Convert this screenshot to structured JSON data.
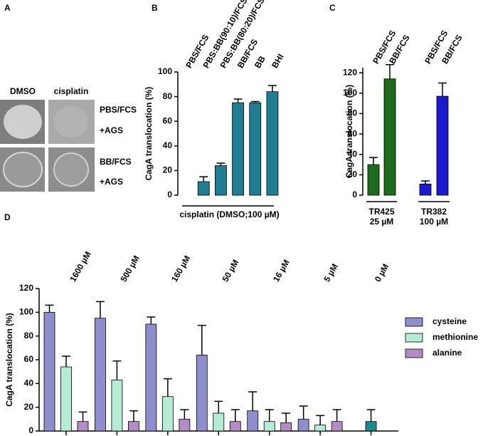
{
  "panel_labels": [
    "A",
    "B",
    "C",
    "D"
  ],
  "panel_a": {
    "columns": [
      "DMSO",
      "cisplatin"
    ],
    "rows": [
      [
        "PBS/FCS",
        "+AGS"
      ],
      [
        "BB/FCS",
        "+AGS"
      ]
    ]
  },
  "chart_data": [
    {
      "type": "bar",
      "ylabel": "CagA translocation (%)",
      "xlabel": "cisplatin (DMSO;100 µM)",
      "categories": [
        "PBS/FCS",
        "PBS:BB(90:10)/FCS",
        "PBS:BB(80:20)/FCS",
        "BB/FCS",
        "BB",
        "BHI"
      ],
      "values": [
        0,
        11,
        24,
        75,
        75,
        84
      ],
      "errors": [
        null,
        4,
        2,
        3,
        1,
        5
      ],
      "color": "#1f7d91",
      "ylim": [
        0,
        100
      ],
      "yticks": [
        0,
        20,
        40,
        60,
        80,
        100
      ]
    },
    {
      "type": "bar",
      "ylabel": "CagA translocation (%)",
      "categories": [
        "PBS/FCS",
        "BB/FCS",
        "PBS/FCS",
        "BB/FCS"
      ],
      "values": [
        30,
        114,
        11,
        97
      ],
      "errors": [
        7,
        14,
        3,
        13
      ],
      "colors": [
        "#1d6b1d",
        "#1d6b1d",
        "#1a1ad0",
        "#1a1ad0"
      ],
      "groups": [
        [
          "TR425",
          "25 µM"
        ],
        [
          "TR382",
          "100 µM"
        ]
      ],
      "ylim": [
        0,
        125
      ],
      "yticks": [
        0,
        20,
        40,
        60,
        80,
        100,
        120
      ]
    },
    {
      "type": "grouped_bar",
      "ylabel": "CagA translocation (%)",
      "categories": [
        "1600 µM",
        "500 µM",
        "160 µM",
        "50 µM",
        "16 µM",
        "5 µM",
        "0 µM"
      ],
      "series": [
        {
          "name": "cysteine",
          "color": "#8e8ecc",
          "values": [
            100,
            95,
            90,
            64,
            17,
            10,
            null
          ],
          "errors": [
            6,
            14,
            6,
            25,
            16,
            11,
            null
          ]
        },
        {
          "name": "methionine",
          "color": "#b4ecd5",
          "values": [
            54,
            43,
            29,
            15,
            8,
            5,
            null
          ],
          "errors": [
            9,
            16,
            15,
            10,
            10,
            8,
            null
          ]
        },
        {
          "name": "alanine",
          "color": "#b48cc4",
          "values": [
            8,
            8,
            10,
            8,
            7,
            8,
            null
          ],
          "errors": [
            8,
            9,
            8,
            10,
            8,
            10,
            null
          ]
        }
      ],
      "control": {
        "value": 8,
        "error": 10,
        "color": "#1a8a8f"
      },
      "ylim": [
        0,
        120
      ],
      "yticks": [
        0,
        20,
        40,
        60,
        80,
        100,
        120
      ],
      "legend": "right"
    }
  ]
}
